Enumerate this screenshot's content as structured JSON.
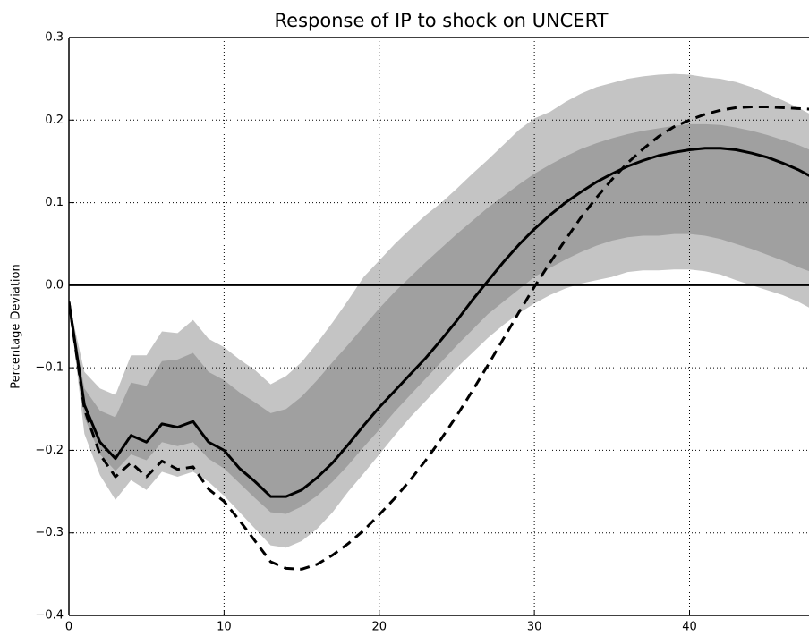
{
  "chart_data": {
    "type": "line",
    "title": "Response of IP to shock on UNCERT",
    "ylabel": "Percentage Deviation",
    "x": [
      0,
      1,
      2,
      3,
      4,
      5,
      6,
      7,
      8,
      9,
      10,
      11,
      12,
      13,
      14,
      15,
      16,
      17,
      18,
      19,
      20,
      21,
      22,
      23,
      24,
      25,
      26,
      27,
      28,
      29,
      30,
      31,
      32,
      33,
      34,
      35,
      36,
      37,
      38,
      39,
      40,
      41,
      42,
      43,
      44,
      45,
      46,
      47,
      48
    ],
    "xlim": [
      0,
      47.7
    ],
    "ylim": [
      -0.4,
      0.3
    ],
    "xticks": [
      0,
      10,
      20,
      30,
      40
    ],
    "yticks": [
      {
        "value": -0.4,
        "label": "−0.4"
      },
      {
        "value": -0.3,
        "label": "−0.3"
      },
      {
        "value": -0.2,
        "label": "−0.2"
      },
      {
        "value": -0.1,
        "label": "−0.1"
      },
      {
        "value": 0,
        "label": "0.0"
      },
      0.1,
      0.2,
      0.3
    ],
    "grid": true,
    "zero_line": true,
    "bands": [
      {
        "color": "#c4c4c4",
        "upper": [
          -0.02,
          -0.105,
          -0.125,
          -0.133,
          -0.085,
          -0.085,
          -0.056,
          -0.058,
          -0.042,
          -0.065,
          -0.075,
          -0.09,
          -0.103,
          -0.12,
          -0.11,
          -0.093,
          -0.07,
          -0.045,
          -0.018,
          0.01,
          0.03,
          0.05,
          0.068,
          0.085,
          0.1,
          0.117,
          0.135,
          0.152,
          0.17,
          0.188,
          0.202,
          0.21,
          0.222,
          0.232,
          0.24,
          0.245,
          0.25,
          0.253,
          0.255,
          0.256,
          0.255,
          0.252,
          0.25,
          0.246,
          0.24,
          0.232,
          0.224,
          0.215,
          0.205
        ],
        "lower": [
          -0.02,
          -0.18,
          -0.23,
          -0.26,
          -0.236,
          -0.248,
          -0.226,
          -0.232,
          -0.226,
          -0.238,
          -0.255,
          -0.275,
          -0.295,
          -0.315,
          -0.318,
          -0.31,
          -0.295,
          -0.275,
          -0.25,
          -0.228,
          -0.205,
          -0.182,
          -0.16,
          -0.14,
          -0.12,
          -0.1,
          -0.082,
          -0.064,
          -0.048,
          -0.034,
          -0.022,
          -0.012,
          -0.004,
          0.002,
          0.006,
          0.01,
          0.016,
          0.018,
          0.018,
          0.019,
          0.019,
          0.017,
          0.013,
          0.006,
          0,
          -0.006,
          -0.012,
          -0.02,
          -0.03
        ]
      },
      {
        "color": "#a0a0a0",
        "upper": [
          -0.02,
          -0.125,
          -0.152,
          -0.16,
          -0.118,
          -0.122,
          -0.092,
          -0.09,
          -0.082,
          -0.105,
          -0.115,
          -0.13,
          -0.142,
          -0.155,
          -0.15,
          -0.135,
          -0.115,
          -0.093,
          -0.072,
          -0.05,
          -0.028,
          -0.008,
          0.01,
          0.028,
          0.045,
          0.062,
          0.078,
          0.094,
          0.108,
          0.122,
          0.135,
          0.146,
          0.156,
          0.165,
          0.172,
          0.178,
          0.183,
          0.187,
          0.19,
          0.193,
          0.195,
          0.195,
          0.194,
          0.191,
          0.187,
          0.182,
          0.176,
          0.17,
          0.162
        ],
        "lower": [
          -0.02,
          -0.16,
          -0.205,
          -0.225,
          -0.205,
          -0.212,
          -0.19,
          -0.195,
          -0.19,
          -0.21,
          -0.222,
          -0.24,
          -0.258,
          -0.275,
          -0.277,
          -0.268,
          -0.255,
          -0.238,
          -0.218,
          -0.196,
          -0.175,
          -0.153,
          -0.133,
          -0.113,
          -0.093,
          -0.073,
          -0.054,
          -0.035,
          -0.02,
          -0.005,
          0.01,
          0.021,
          0.031,
          0.04,
          0.048,
          0.054,
          0.058,
          0.06,
          0.06,
          0.062,
          0.062,
          0.06,
          0.056,
          0.05,
          0.044,
          0.037,
          0.03,
          0.022,
          0.015
        ]
      }
    ],
    "series": [
      {
        "color": "#000000",
        "dash": "solid",
        "values": [
          -0.02,
          -0.145,
          -0.19,
          -0.21,
          -0.182,
          -0.19,
          -0.168,
          -0.172,
          -0.165,
          -0.19,
          -0.2,
          -0.222,
          -0.238,
          -0.256,
          -0.256,
          -0.248,
          -0.233,
          -0.215,
          -0.193,
          -0.17,
          -0.148,
          -0.128,
          -0.108,
          -0.088,
          -0.066,
          -0.043,
          -0.018,
          0.005,
          0.028,
          0.049,
          0.068,
          0.085,
          0.1,
          0.113,
          0.125,
          0.135,
          0.144,
          0.151,
          0.157,
          0.161,
          0.164,
          0.166,
          0.166,
          0.164,
          0.16,
          0.155,
          0.148,
          0.14,
          0.13
        ]
      },
      {
        "color": "#000000",
        "dash": "dashed",
        "values": [
          -0.02,
          -0.15,
          -0.205,
          -0.232,
          -0.215,
          -0.232,
          -0.213,
          -0.223,
          -0.22,
          -0.247,
          -0.262,
          -0.285,
          -0.31,
          -0.335,
          -0.343,
          -0.344,
          -0.338,
          -0.327,
          -0.313,
          -0.297,
          -0.278,
          -0.258,
          -0.236,
          -0.212,
          -0.186,
          -0.158,
          -0.128,
          -0.097,
          -0.065,
          -0.033,
          -0.002,
          0.027,
          0.055,
          0.082,
          0.106,
          0.128,
          0.148,
          0.165,
          0.18,
          0.192,
          0.2,
          0.207,
          0.212,
          0.215,
          0.216,
          0.216,
          0.215,
          0.214,
          0.213
        ]
      }
    ]
  }
}
